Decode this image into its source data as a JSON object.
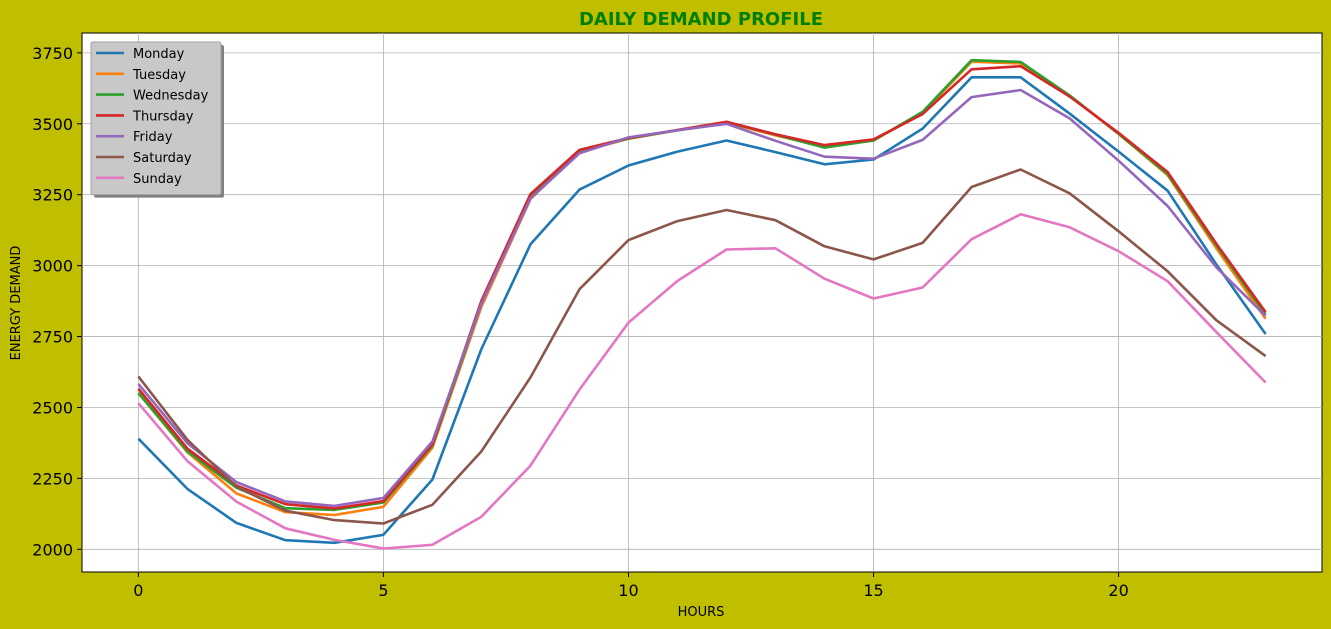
{
  "chart_data": {
    "type": "line",
    "title": "DAILY DEMAND PROFILE",
    "xlabel": "HOURS",
    "ylabel": "ENERGY DEMAND",
    "xlim": [
      -1.15,
      24.15
    ],
    "ylim": [
      1920,
      3820
    ],
    "x_ticks": [
      0,
      5,
      10,
      15,
      20
    ],
    "y_ticks": [
      2000,
      2250,
      2500,
      2750,
      3000,
      3250,
      3500,
      3750
    ],
    "grid": true,
    "legend_position": "top-left",
    "x": [
      0,
      1,
      2,
      3,
      4,
      5,
      6,
      7,
      8,
      9,
      10,
      11,
      12,
      13,
      14,
      15,
      16,
      17,
      18,
      19,
      20,
      21,
      22,
      23
    ],
    "series": [
      {
        "name": "Monday",
        "color": "#1f77b4",
        "values": [
          2390,
          2213,
          2093,
          2032,
          2023,
          2051,
          2246,
          2706,
          3075,
          3268,
          3353,
          3402,
          3441,
          3400,
          3357,
          3374,
          3483,
          3664,
          3664,
          3536,
          3402,
          3264,
          3003,
          2759
        ]
      },
      {
        "name": "Tuesday",
        "color": "#ff7f0e",
        "values": [
          2551,
          2342,
          2197,
          2131,
          2121,
          2150,
          2358,
          2855,
          3235,
          3401,
          3447,
          3478,
          3504,
          3459,
          3419,
          3441,
          3538,
          3719,
          3713,
          3599,
          3464,
          3319,
          3060,
          2813
        ]
      },
      {
        "name": "Wednesday",
        "color": "#2ca02c",
        "values": [
          2551,
          2345,
          2217,
          2145,
          2139,
          2165,
          2366,
          2866,
          3245,
          3404,
          3448,
          3477,
          3506,
          3462,
          3416,
          3441,
          3542,
          3724,
          3718,
          3600,
          3465,
          3323,
          3070,
          2828
        ]
      },
      {
        "name": "Thursday",
        "color": "#d62728",
        "values": [
          2566,
          2355,
          2225,
          2159,
          2144,
          2170,
          2370,
          2876,
          3252,
          3408,
          3450,
          3478,
          3507,
          3463,
          3425,
          3445,
          3534,
          3692,
          3703,
          3596,
          3468,
          3330,
          3076,
          2836
        ]
      },
      {
        "name": "Friday",
        "color": "#9467bd",
        "values": [
          2583,
          2374,
          2237,
          2169,
          2153,
          2181,
          2380,
          2866,
          3237,
          3396,
          3452,
          3477,
          3500,
          3440,
          3384,
          3377,
          3443,
          3594,
          3619,
          3519,
          3370,
          3210,
          2993,
          2823
        ]
      },
      {
        "name": "Saturday",
        "color": "#8c564b",
        "values": [
          2609,
          2386,
          2221,
          2136,
          2103,
          2091,
          2157,
          2345,
          2606,
          2917,
          3090,
          3157,
          3196,
          3160,
          3068,
          3022,
          3080,
          3277,
          3339,
          3255,
          3121,
          2980,
          2807,
          2681
        ]
      },
      {
        "name": "Sunday",
        "color": "#e377c2",
        "values": [
          2515,
          2311,
          2168,
          2074,
          2033,
          2003,
          2016,
          2115,
          2295,
          2563,
          2799,
          2946,
          3057,
          3061,
          2954,
          2884,
          2923,
          3093,
          3181,
          3135,
          3051,
          2945,
          2765,
          2588
        ]
      }
    ]
  }
}
